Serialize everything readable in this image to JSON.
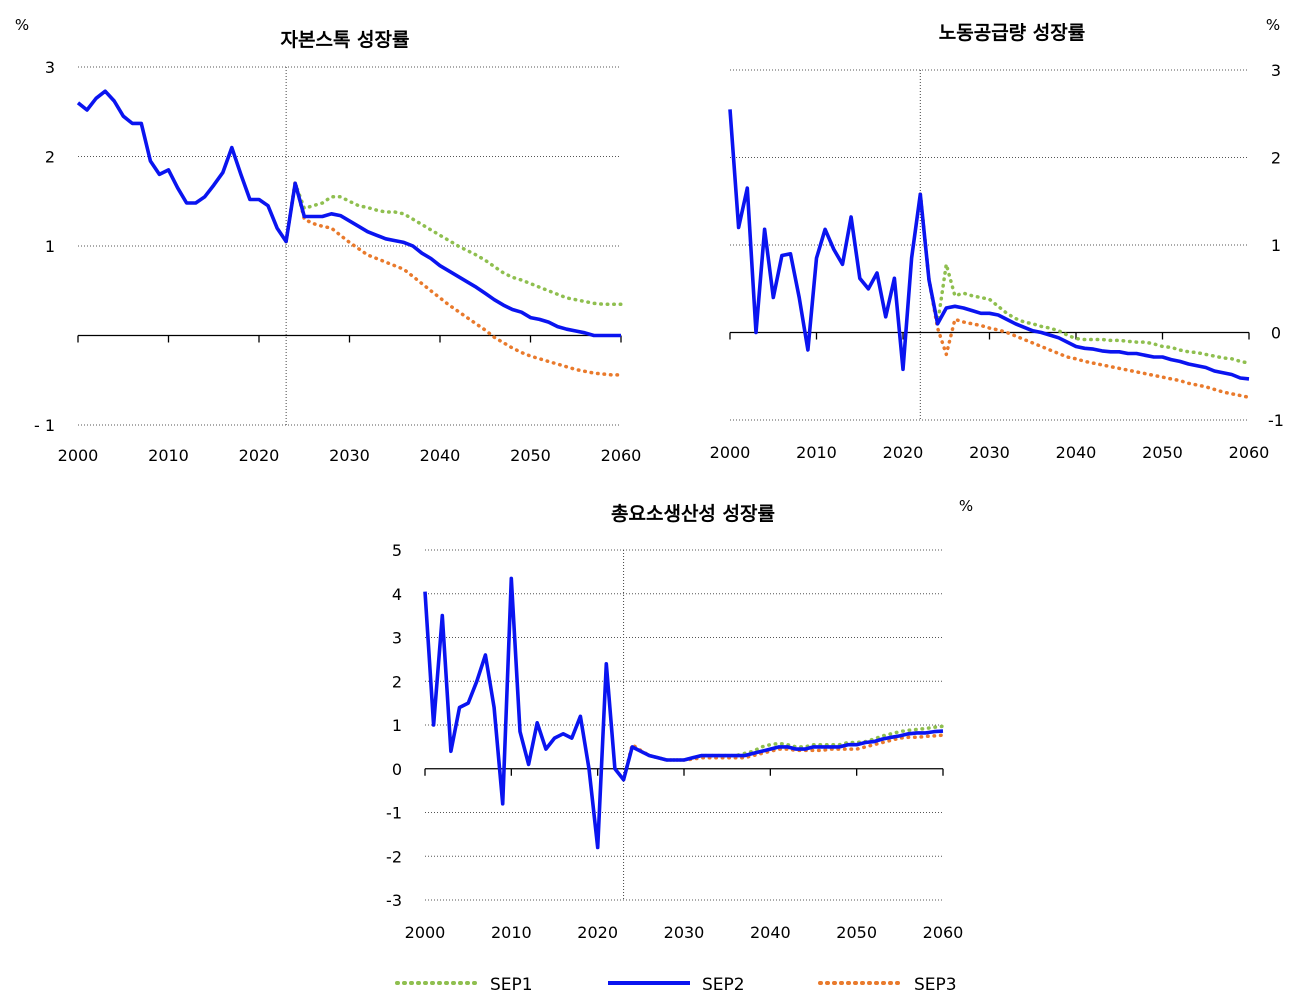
{
  "charts": [
    {
      "title": "자본스톡 성장률",
      "unit": "%",
      "x_ticks": [
        "2000",
        "2010",
        "2020",
        "2030",
        "2040",
        "2050",
        "2060"
      ],
      "y_ticks": [
        "3",
        "2",
        "1",
        "- 1"
      ]
    },
    {
      "title": "노동공급량 성장률",
      "unit": "%",
      "x_ticks": [
        "2000",
        "2010",
        "2020",
        "2030",
        "2040",
        "2050",
        "2060"
      ],
      "y_ticks": [
        "3",
        "2",
        "1",
        "0",
        "-1"
      ]
    },
    {
      "title": "총요소생산성 성장률",
      "unit": "%",
      "x_ticks": [
        "2000",
        "2010",
        "2020",
        "2030",
        "2040",
        "2050",
        "2060"
      ],
      "y_ticks": [
        "5",
        "4",
        "3",
        "2",
        "1",
        "0",
        "-1",
        "-2",
        "-3"
      ]
    }
  ],
  "legend": [
    {
      "name": "SEP1",
      "color": "#8fbf4f",
      "style": "dotted"
    },
    {
      "name": "SEP2",
      "color": "#0a14f0",
      "style": "solid"
    },
    {
      "name": "SEP3",
      "color": "#e97a2c",
      "style": "dotted"
    }
  ],
  "chart_data": [
    {
      "type": "line",
      "title": "자본스톡 성장률",
      "ylabel": "%",
      "xlim": [
        2000,
        2060
      ],
      "ylim": [
        -1,
        3
      ],
      "grid": true,
      "divider_x": 2023,
      "series": [
        {
          "name": "SEP2",
          "x": [
            2000,
            2001,
            2002,
            2003,
            2004,
            2005,
            2006,
            2007,
            2008,
            2009,
            2010,
            2011,
            2012,
            2013,
            2014,
            2015,
            2016,
            2017,
            2018,
            2019,
            2020,
            2021,
            2022,
            2023,
            2024,
            2025,
            2026,
            2027,
            2028,
            2029,
            2030,
            2031,
            2032,
            2033,
            2034,
            2035,
            2036,
            2037,
            2038,
            2039,
            2040,
            2041,
            2042,
            2043,
            2044,
            2045,
            2046,
            2047,
            2048,
            2049,
            2050,
            2051,
            2052,
            2053,
            2054,
            2055,
            2056,
            2057,
            2058,
            2059,
            2060
          ],
          "values": [
            2.6,
            2.52,
            2.65,
            2.73,
            2.62,
            2.45,
            2.37,
            2.37,
            1.95,
            1.8,
            1.85,
            1.65,
            1.48,
            1.48,
            1.55,
            1.68,
            1.82,
            2.1,
            1.8,
            1.52,
            1.52,
            1.45,
            1.2,
            1.05,
            1.7,
            1.33,
            1.33,
            1.33,
            1.36,
            1.34,
            1.28,
            1.22,
            1.16,
            1.12,
            1.08,
            1.06,
            1.04,
            1.0,
            0.92,
            0.86,
            0.78,
            0.72,
            0.66,
            0.6,
            0.54,
            0.47,
            0.4,
            0.34,
            0.29,
            0.26,
            0.2,
            0.18,
            0.15,
            0.1,
            0.07,
            0.05,
            0.03,
            0.0,
            0.0,
            0.0,
            0.0
          ]
        },
        {
          "name": "SEP1",
          "x": [
            2023,
            2024,
            2025,
            2026,
            2027,
            2028,
            2029,
            2030,
            2031,
            2032,
            2033,
            2034,
            2035,
            2036,
            2037,
            2038,
            2039,
            2040,
            2041,
            2042,
            2043,
            2044,
            2045,
            2046,
            2047,
            2048,
            2049,
            2050,
            2051,
            2052,
            2053,
            2054,
            2055,
            2056,
            2057,
            2058,
            2059,
            2060
          ],
          "values": [
            1.05,
            1.7,
            1.42,
            1.45,
            1.48,
            1.55,
            1.55,
            1.5,
            1.45,
            1.43,
            1.4,
            1.38,
            1.38,
            1.36,
            1.3,
            1.24,
            1.18,
            1.12,
            1.06,
            1.0,
            0.95,
            0.9,
            0.84,
            0.77,
            0.7,
            0.65,
            0.62,
            0.58,
            0.54,
            0.5,
            0.46,
            0.42,
            0.4,
            0.38,
            0.36,
            0.35,
            0.35,
            0.35
          ]
        },
        {
          "name": "SEP3",
          "x": [
            2023,
            2024,
            2025,
            2026,
            2027,
            2028,
            2029,
            2030,
            2031,
            2032,
            2033,
            2034,
            2035,
            2036,
            2037,
            2038,
            2039,
            2040,
            2041,
            2042,
            2043,
            2044,
            2045,
            2046,
            2047,
            2048,
            2049,
            2050,
            2051,
            2052,
            2053,
            2054,
            2055,
            2056,
            2057,
            2058,
            2059,
            2060
          ],
          "values": [
            1.05,
            1.72,
            1.3,
            1.25,
            1.22,
            1.2,
            1.12,
            1.04,
            0.97,
            0.9,
            0.86,
            0.82,
            0.78,
            0.74,
            0.66,
            0.58,
            0.5,
            0.42,
            0.34,
            0.27,
            0.2,
            0.13,
            0.06,
            -0.02,
            -0.08,
            -0.14,
            -0.19,
            -0.23,
            -0.26,
            -0.29,
            -0.32,
            -0.35,
            -0.38,
            -0.4,
            -0.42,
            -0.43,
            -0.44,
            -0.44
          ]
        }
      ]
    },
    {
      "type": "line",
      "title": "노동공급량 성장률",
      "ylabel": "%",
      "xlim": [
        2000,
        2060
      ],
      "ylim": [
        -1,
        3
      ],
      "grid": true,
      "divider_x": 2022,
      "series": [
        {
          "name": "SEP2",
          "x": [
            2000,
            2001,
            2002,
            2003,
            2004,
            2005,
            2006,
            2007,
            2008,
            2009,
            2010,
            2011,
            2012,
            2013,
            2014,
            2015,
            2016,
            2017,
            2018,
            2019,
            2020,
            2021,
            2022,
            2023,
            2024,
            2025,
            2026,
            2027,
            2028,
            2029,
            2030,
            2031,
            2032,
            2033,
            2034,
            2035,
            2036,
            2037,
            2038,
            2039,
            2040,
            2041,
            2042,
            2043,
            2044,
            2045,
            2046,
            2047,
            2048,
            2049,
            2050,
            2051,
            2052,
            2053,
            2054,
            2055,
            2056,
            2057,
            2058,
            2059,
            2060
          ],
          "values": [
            2.55,
            1.2,
            1.65,
            0.0,
            1.18,
            0.4,
            0.88,
            0.9,
            0.4,
            -0.2,
            0.85,
            1.18,
            0.95,
            0.78,
            1.32,
            0.62,
            0.5,
            0.68,
            0.18,
            0.62,
            -0.42,
            0.85,
            1.58,
            0.6,
            0.1,
            0.28,
            0.3,
            0.28,
            0.25,
            0.22,
            0.22,
            0.2,
            0.15,
            0.1,
            0.06,
            0.02,
            0.0,
            -0.03,
            -0.06,
            -0.11,
            -0.16,
            -0.18,
            -0.19,
            -0.21,
            -0.22,
            -0.22,
            -0.24,
            -0.24,
            -0.26,
            -0.28,
            -0.28,
            -0.31,
            -0.33,
            -0.36,
            -0.38,
            -0.4,
            -0.44,
            -0.46,
            -0.48,
            -0.52,
            -0.53
          ]
        },
        {
          "name": "SEP1",
          "x": [
            2022,
            2023,
            2024,
            2025,
            2026,
            2027,
            2028,
            2029,
            2030,
            2031,
            2032,
            2033,
            2034,
            2035,
            2036,
            2037,
            2038,
            2039,
            2040,
            2041,
            2042,
            2043,
            2044,
            2045,
            2046,
            2047,
            2048,
            2049,
            2050,
            2051,
            2052,
            2053,
            2054,
            2055,
            2056,
            2057,
            2058,
            2059,
            2060
          ],
          "values": [
            1.58,
            0.6,
            0.1,
            0.78,
            0.42,
            0.45,
            0.42,
            0.4,
            0.38,
            0.3,
            0.22,
            0.16,
            0.12,
            0.1,
            0.07,
            0.05,
            0.02,
            -0.03,
            -0.07,
            -0.08,
            -0.08,
            -0.08,
            -0.09,
            -0.09,
            -0.1,
            -0.11,
            -0.11,
            -0.13,
            -0.16,
            -0.17,
            -0.2,
            -0.22,
            -0.23,
            -0.25,
            -0.27,
            -0.29,
            -0.3,
            -0.33,
            -0.35
          ]
        },
        {
          "name": "SEP3",
          "x": [
            2022,
            2023,
            2024,
            2025,
            2026,
            2027,
            2028,
            2029,
            2030,
            2031,
            2032,
            2033,
            2034,
            2035,
            2036,
            2037,
            2038,
            2039,
            2040,
            2041,
            2042,
            2043,
            2044,
            2045,
            2046,
            2047,
            2048,
            2049,
            2050,
            2051,
            2052,
            2053,
            2054,
            2055,
            2056,
            2057,
            2058,
            2059,
            2060
          ],
          "values": [
            1.58,
            0.6,
            0.05,
            -0.25,
            0.15,
            0.12,
            0.1,
            0.08,
            0.05,
            0.03,
            0.0,
            -0.04,
            -0.08,
            -0.12,
            -0.16,
            -0.2,
            -0.24,
            -0.28,
            -0.3,
            -0.33,
            -0.35,
            -0.37,
            -0.39,
            -0.41,
            -0.43,
            -0.45,
            -0.47,
            -0.49,
            -0.51,
            -0.53,
            -0.55,
            -0.58,
            -0.6,
            -0.62,
            -0.65,
            -0.68,
            -0.7,
            -0.72,
            -0.74
          ]
        }
      ]
    },
    {
      "type": "line",
      "title": "총요소생산성 성장률",
      "ylabel": "%",
      "xlim": [
        2000,
        2060
      ],
      "ylim": [
        -3,
        5
      ],
      "grid": true,
      "divider_x": 2023,
      "series": [
        {
          "name": "SEP2",
          "x": [
            2000,
            2001,
            2002,
            2003,
            2004,
            2005,
            2006,
            2007,
            2008,
            2009,
            2010,
            2011,
            2012,
            2013,
            2014,
            2015,
            2016,
            2017,
            2018,
            2019,
            2020,
            2021,
            2022,
            2023,
            2024,
            2025,
            2026,
            2027,
            2028,
            2029,
            2030,
            2031,
            2032,
            2033,
            2034,
            2035,
            2036,
            2037,
            2038,
            2039,
            2040,
            2041,
            2042,
            2043,
            2044,
            2045,
            2046,
            2047,
            2048,
            2049,
            2050,
            2051,
            2052,
            2053,
            2054,
            2055,
            2056,
            2057,
            2058,
            2059,
            2060
          ],
          "values": [
            4.05,
            1.0,
            3.5,
            0.4,
            1.4,
            1.5,
            2.0,
            2.6,
            1.4,
            -0.8,
            4.35,
            0.85,
            0.1,
            1.05,
            0.45,
            0.7,
            0.8,
            0.7,
            1.2,
            0.0,
            -1.8,
            2.4,
            0.0,
            -0.25,
            0.5,
            0.4,
            0.3,
            0.25,
            0.2,
            0.2,
            0.2,
            0.25,
            0.3,
            0.3,
            0.3,
            0.3,
            0.3,
            0.3,
            0.35,
            0.4,
            0.45,
            0.5,
            0.5,
            0.45,
            0.45,
            0.5,
            0.5,
            0.5,
            0.5,
            0.55,
            0.55,
            0.6,
            0.62,
            0.68,
            0.72,
            0.75,
            0.8,
            0.82,
            0.82,
            0.85,
            0.86
          ]
        },
        {
          "name": "SEP1",
          "x": [
            2023,
            2024,
            2025,
            2026,
            2027,
            2028,
            2029,
            2030,
            2031,
            2032,
            2033,
            2034,
            2035,
            2036,
            2037,
            2038,
            2039,
            2040,
            2041,
            2042,
            2043,
            2044,
            2045,
            2046,
            2047,
            2048,
            2049,
            2050,
            2051,
            2052,
            2053,
            2054,
            2055,
            2056,
            2057,
            2058,
            2059,
            2060
          ],
          "values": [
            -0.25,
            0.5,
            0.4,
            0.3,
            0.25,
            0.2,
            0.2,
            0.2,
            0.25,
            0.3,
            0.3,
            0.3,
            0.3,
            0.3,
            0.35,
            0.4,
            0.5,
            0.55,
            0.58,
            0.55,
            0.5,
            0.5,
            0.55,
            0.55,
            0.55,
            0.55,
            0.6,
            0.6,
            0.62,
            0.68,
            0.75,
            0.8,
            0.85,
            0.88,
            0.9,
            0.92,
            0.95,
            0.97
          ]
        },
        {
          "name": "SEP3",
          "x": [
            2023,
            2024,
            2025,
            2026,
            2027,
            2028,
            2029,
            2030,
            2031,
            2032,
            2033,
            2034,
            2035,
            2036,
            2037,
            2038,
            2039,
            2040,
            2041,
            2042,
            2043,
            2044,
            2045,
            2046,
            2047,
            2048,
            2049,
            2050,
            2051,
            2052,
            2053,
            2054,
            2055,
            2056,
            2057,
            2058,
            2059,
            2060
          ],
          "values": [
            -0.25,
            0.55,
            0.42,
            0.3,
            0.25,
            0.2,
            0.2,
            0.2,
            0.22,
            0.25,
            0.25,
            0.25,
            0.25,
            0.25,
            0.25,
            0.3,
            0.35,
            0.4,
            0.45,
            0.45,
            0.42,
            0.42,
            0.42,
            0.42,
            0.45,
            0.45,
            0.45,
            0.45,
            0.5,
            0.55,
            0.6,
            0.65,
            0.7,
            0.72,
            0.72,
            0.74,
            0.75,
            0.77
          ]
        }
      ]
    }
  ]
}
